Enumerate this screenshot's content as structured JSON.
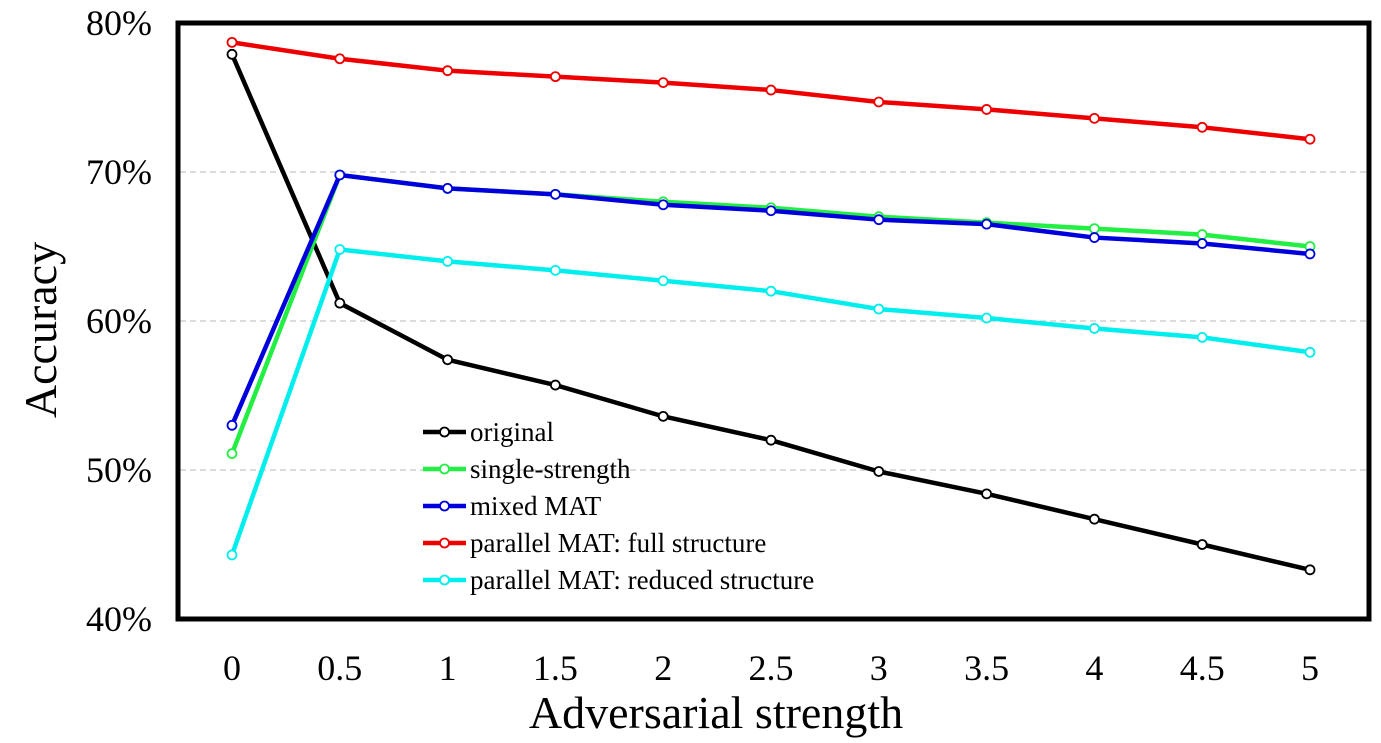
{
  "chart_data": {
    "type": "line",
    "title": "",
    "xlabel": "Adversarial strength",
    "ylabel": "Accuracy",
    "x": [
      0,
      0.5,
      1,
      1.5,
      2,
      2.5,
      3,
      3.5,
      4,
      4.5,
      5
    ],
    "x_tick_labels": [
      "0",
      "0.5",
      "1",
      "1.5",
      "2",
      "2.5",
      "3",
      "3.5",
      "4",
      "4.5",
      "5"
    ],
    "ylim": [
      40,
      80
    ],
    "y_ticks": [
      40,
      50,
      60,
      70,
      80
    ],
    "y_tick_labels": [
      "40%",
      "50%",
      "60%",
      "70%",
      "80%"
    ],
    "grid": "horizontal dashed",
    "legend_position": "lower-center",
    "series": [
      {
        "name": "original",
        "color": "#000000",
        "values": [
          77.9,
          61.2,
          57.4,
          55.7,
          53.6,
          52.0,
          49.9,
          48.4,
          46.7,
          45.0,
          43.3
        ]
      },
      {
        "name": "single-strength",
        "color": "#22ee44",
        "values": [
          51.1,
          69.8,
          68.9,
          68.5,
          68.0,
          67.6,
          67.0,
          66.6,
          66.2,
          65.8,
          65.0
        ]
      },
      {
        "name": "mixed MAT",
        "color": "#0000dd",
        "values": [
          53.0,
          69.8,
          68.9,
          68.5,
          67.8,
          67.4,
          66.8,
          66.5,
          65.6,
          65.2,
          64.5
        ]
      },
      {
        "name": "parallel MAT: full structure",
        "color": "#ee0000",
        "values": [
          78.7,
          77.6,
          76.8,
          76.4,
          76.0,
          75.5,
          74.7,
          74.2,
          73.6,
          73.0,
          72.2
        ]
      },
      {
        "name": "parallel MAT: reduced structure",
        "color": "#00eeee",
        "values": [
          44.3,
          64.8,
          64.0,
          63.4,
          62.7,
          62.0,
          60.8,
          60.2,
          59.5,
          58.9,
          57.9
        ]
      }
    ]
  }
}
